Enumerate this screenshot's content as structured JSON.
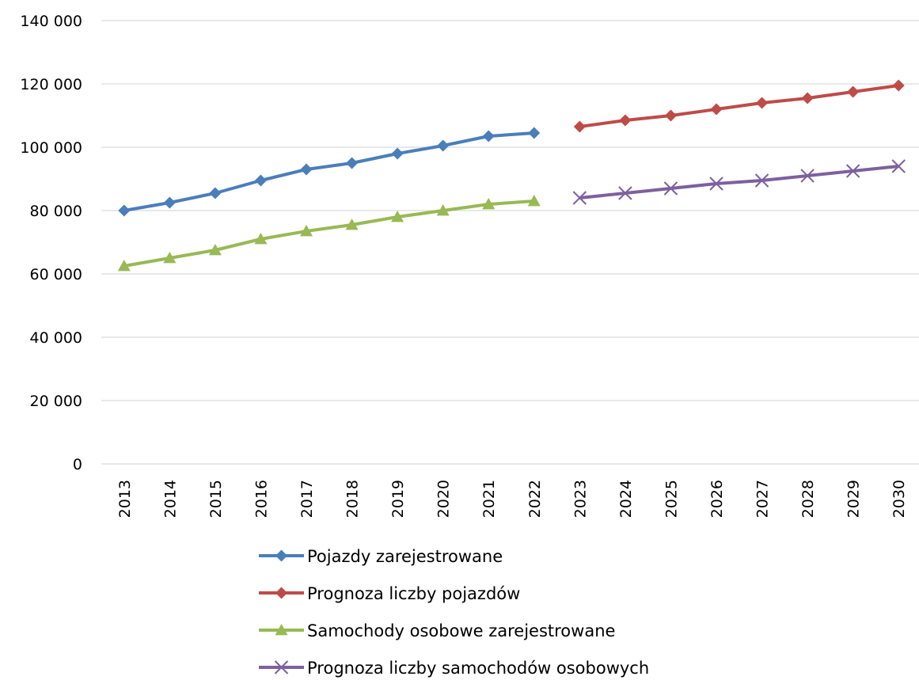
{
  "chart_data": {
    "type": "line",
    "categories": [
      "2013",
      "2014",
      "2015",
      "2016",
      "2017",
      "2018",
      "2019",
      "2020",
      "2021",
      "2022",
      "2023",
      "2024",
      "2025",
      "2026",
      "2027",
      "2028",
      "2029",
      "2030"
    ],
    "ylim": [
      0,
      140000
    ],
    "yticks": [
      0,
      20000,
      40000,
      60000,
      80000,
      100000,
      120000,
      140000
    ],
    "ytick_labels": [
      "0",
      "20 000",
      "40 000",
      "60 000",
      "80 000",
      "100 000",
      "120 000",
      "140 000"
    ],
    "grid": true,
    "legend_position": "bottom",
    "series": [
      {
        "name": "Pojazdy zarejestrowane",
        "color": "#4a7ebb",
        "marker": "diamond",
        "values": [
          80000,
          82500,
          85500,
          89500,
          93000,
          95000,
          98000,
          100500,
          103500,
          104500,
          null,
          null,
          null,
          null,
          null,
          null,
          null,
          null
        ]
      },
      {
        "name": "Prognoza liczby pojazdów",
        "color": "#be4b48",
        "marker": "diamond",
        "values": [
          null,
          null,
          null,
          null,
          null,
          null,
          null,
          null,
          null,
          null,
          106500,
          108500,
          110000,
          112000,
          114000,
          115500,
          117500,
          119500
        ]
      },
      {
        "name": "Samochody osobowe zarejestrowane",
        "color": "#98b954",
        "marker": "triangle",
        "values": [
          62500,
          65000,
          67500,
          71000,
          73500,
          75500,
          78000,
          80000,
          82000,
          83000,
          null,
          null,
          null,
          null,
          null,
          null,
          null,
          null
        ]
      },
      {
        "name": "Prognoza liczby samochodów osobowych",
        "color": "#7d60a0",
        "marker": "x",
        "values": [
          null,
          null,
          null,
          null,
          null,
          null,
          null,
          null,
          null,
          null,
          84000,
          85500,
          87000,
          88500,
          89500,
          91000,
          92500,
          94000
        ]
      }
    ]
  }
}
